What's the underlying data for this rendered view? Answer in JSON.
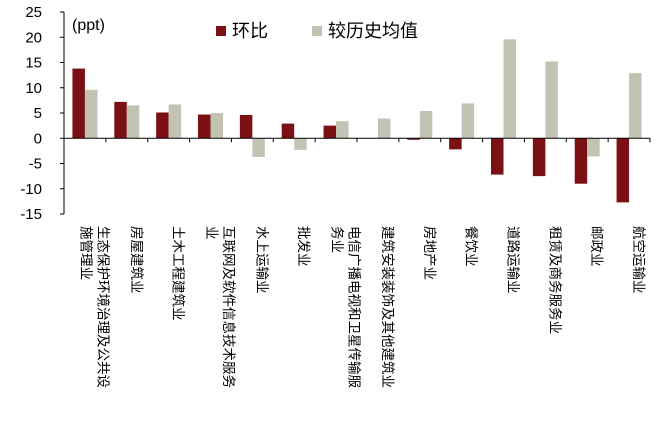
{
  "chart_data": {
    "type": "bar",
    "ylabel": "(ppt)",
    "ylim": [
      -15,
      25
    ],
    "yticks": [
      -15,
      -10,
      -5,
      0,
      5,
      10,
      15,
      20,
      25
    ],
    "legend_position": "top",
    "categories": [
      [
        "生态保护环境治理及公共设",
        "施管理业"
      ],
      [
        "房屋建筑业"
      ],
      [
        "土木工程建筑业"
      ],
      [
        "互联网及软件信息技术服务",
        "业"
      ],
      [
        "水上运输业"
      ],
      [
        "批发业"
      ],
      [
        "电信广播电视和卫星传输服",
        "务业"
      ],
      [
        "建筑安装装饰及其他建筑业"
      ],
      [
        "房地产业"
      ],
      [
        "餐饮业"
      ],
      [
        "道路运输业"
      ],
      [
        "租赁及商务服务业"
      ],
      [
        "邮政业"
      ],
      [
        "航空运输业"
      ]
    ],
    "series": [
      {
        "name": "环比",
        "color": "#7b1114",
        "values": [
          13.8,
          7.2,
          5.1,
          4.7,
          4.6,
          2.9,
          2.5,
          0.0,
          -0.3,
          -2.2,
          -7.2,
          -7.5,
          -9.0,
          -12.7
        ]
      },
      {
        "name": "较历史均值",
        "color": "#c3c3b3",
        "values": [
          9.6,
          6.5,
          6.7,
          5.0,
          -3.7,
          -2.3,
          3.4,
          3.9,
          5.4,
          6.9,
          19.6,
          15.2,
          -3.6,
          12.9
        ]
      }
    ]
  }
}
